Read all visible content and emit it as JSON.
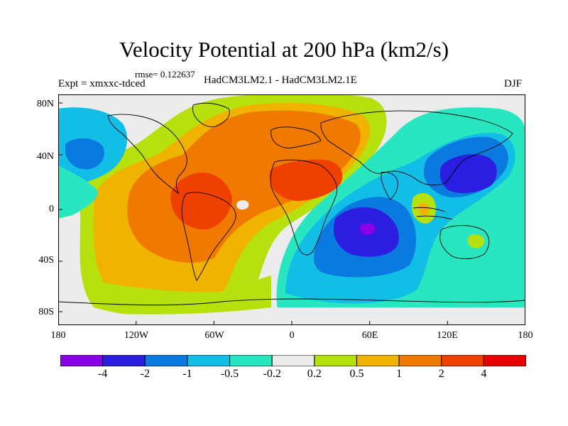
{
  "title": "Velocity Potential at 200 hPa (km2/s)",
  "rmse_label": "rmse= 0.122637",
  "expt_label": "Expt = xmxxc-tdced",
  "models_label": "HadCM3LM2.1 - HadCM3LM2.1E",
  "season": "DJF",
  "lat_labels": [
    "80N",
    "40N",
    "0",
    "40S",
    "80S"
  ],
  "lon_labels": [
    "180",
    "120W",
    "60W",
    "0",
    "60E",
    "120E",
    "180"
  ],
  "colorbar": {
    "colors": [
      "#8a00e6",
      "#2b1ee0",
      "#0a7ae0",
      "#12bde6",
      "#27e6c0",
      "#ececec",
      "#b7e10e",
      "#f0b400",
      "#f07a00",
      "#f04000",
      "#e80000"
    ],
    "labels": [
      "-4",
      "-2",
      "-1",
      "-0.5",
      "-0.2",
      "0.2",
      "0.5",
      "1",
      "2",
      "4"
    ]
  }
}
